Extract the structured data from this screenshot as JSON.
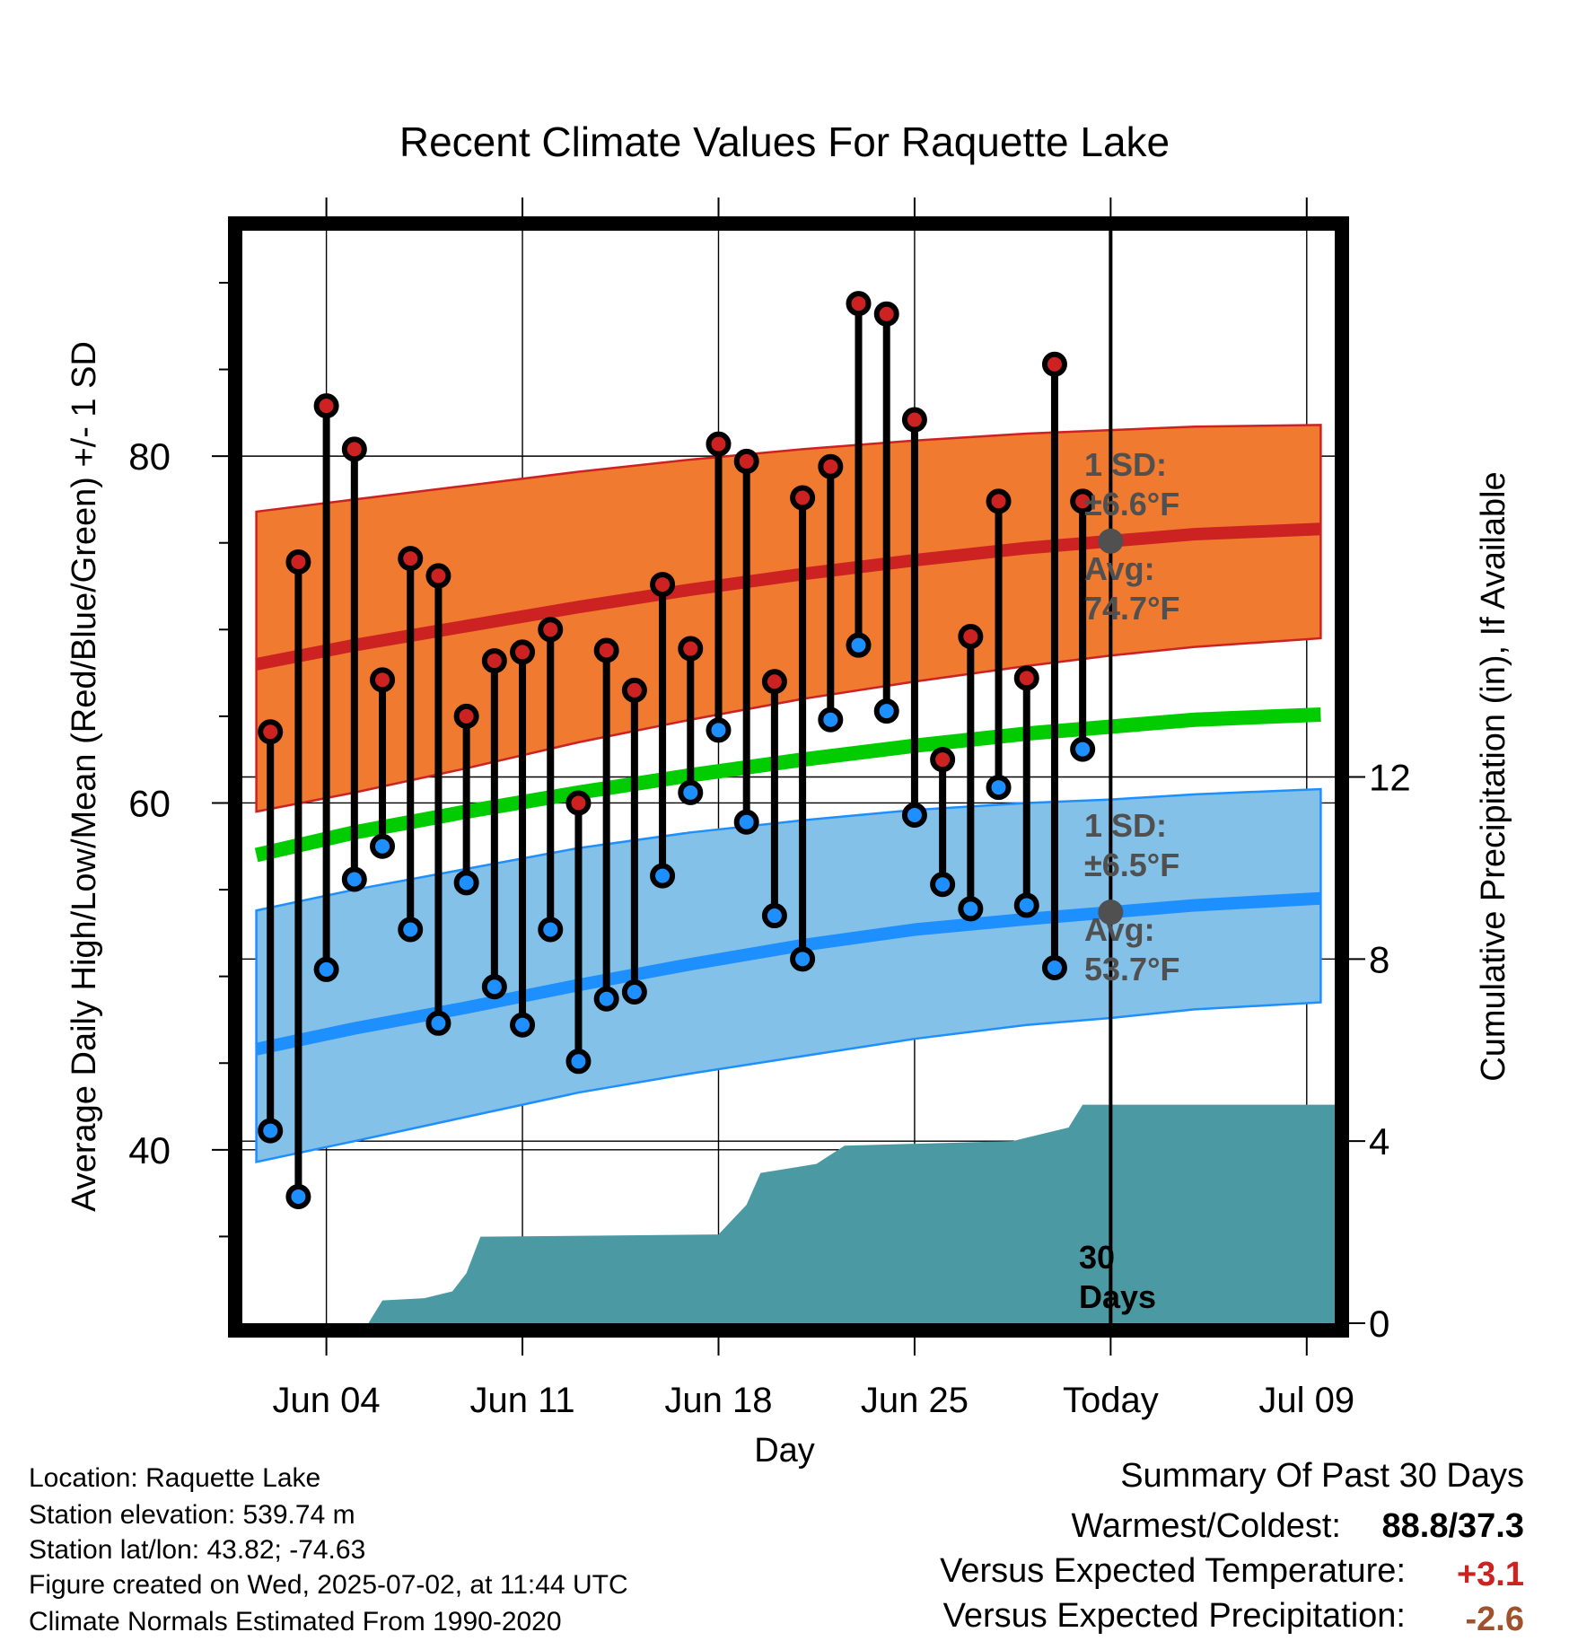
{
  "chart_data": {
    "type": "line",
    "title": "Recent Climate Values For Raquette Lake",
    "xlabel": "Day",
    "ylabel": "Average Daily High/Low/Mean (Red/Blue/Green) +/- 1 SD",
    "y2label": "Cumulative Precipitation (in), If Available",
    "ylim": [
      30,
      93
    ],
    "y2lim": [
      0,
      24
    ],
    "yticks": [
      40,
      60,
      80
    ],
    "y2ticks": [
      0,
      4,
      8,
      12
    ],
    "xrange": [
      0,
      39
    ],
    "xticks": [
      {
        "day": 3,
        "label": "Jun 04"
      },
      {
        "day": 10,
        "label": "Jun 11"
      },
      {
        "day": 17,
        "label": "Jun 18"
      },
      {
        "day": 24,
        "label": "Jun 25"
      },
      {
        "day": 31,
        "label": "Today"
      },
      {
        "day": 38,
        "label": "Jul 09"
      }
    ],
    "today_day": 31,
    "grid": true,
    "normals": {
      "days": [
        0.5,
        4,
        8,
        12,
        16,
        20,
        24,
        28,
        31,
        34,
        38.5
      ],
      "high_mean": [
        68.0,
        69.1,
        70.2,
        71.3,
        72.3,
        73.2,
        74.0,
        74.7,
        75.1,
        75.5,
        75.8
      ],
      "high_upper": [
        76.8,
        77.5,
        78.3,
        79.1,
        79.8,
        80.4,
        80.9,
        81.3,
        81.5,
        81.7,
        81.8
      ],
      "high_lower": [
        59.5,
        60.6,
        62.0,
        63.5,
        64.8,
        66.0,
        67.0,
        67.9,
        68.5,
        69.0,
        69.5
      ],
      "low_mean": [
        45.8,
        47.0,
        48.2,
        49.5,
        50.7,
        51.8,
        52.7,
        53.3,
        53.7,
        54.1,
        54.5
      ],
      "low_upper": [
        53.8,
        55.0,
        56.2,
        57.4,
        58.3,
        59.0,
        59.6,
        60.0,
        60.2,
        60.5,
        60.8
      ],
      "low_lower": [
        39.3,
        40.5,
        41.9,
        43.3,
        44.4,
        45.4,
        46.4,
        47.2,
        47.6,
        48.1,
        48.5
      ],
      "mean_mean": [
        57.0,
        58.3,
        59.5,
        60.6,
        61.6,
        62.5,
        63.3,
        64.0,
        64.4,
        64.8,
        65.1
      ]
    },
    "observed": {
      "days": [
        1,
        2,
        3,
        4,
        5,
        6,
        7,
        8,
        9,
        10,
        11,
        12,
        13,
        14,
        15,
        16,
        17,
        18,
        19,
        20,
        21,
        22,
        23,
        24,
        25,
        26,
        27,
        28,
        29,
        30
      ],
      "highs": [
        64.1,
        73.9,
        82.9,
        80.4,
        67.1,
        74.1,
        73.1,
        65.0,
        68.2,
        68.7,
        70.0,
        60.0,
        68.8,
        66.5,
        72.6,
        68.9,
        80.7,
        79.7,
        67.0,
        77.6,
        79.4,
        88.8,
        88.2,
        82.1,
        62.5,
        69.6,
        77.4,
        67.2,
        85.3,
        77.4
      ],
      "lows": [
        41.1,
        37.3,
        50.4,
        55.6,
        57.5,
        52.7,
        47.3,
        55.4,
        49.4,
        47.2,
        52.7,
        45.1,
        48.7,
        49.1,
        55.8,
        60.6,
        64.2,
        58.9,
        53.5,
        51.0,
        64.8,
        69.1,
        65.3,
        59.3,
        55.3,
        53.9,
        60.9,
        54.1,
        50.5,
        63.1
      ]
    },
    "precipitation": {
      "days": [
        0.5,
        4.5,
        5.0,
        6.5,
        7.5,
        8.0,
        8.5,
        17.0,
        18.0,
        18.5,
        20.5,
        21.5,
        27.5,
        29.5,
        30.0,
        31.0,
        39.0
      ],
      "cumulative": [
        0,
        0,
        0.5,
        0.55,
        0.7,
        1.1,
        1.9,
        1.95,
        2.6,
        3.3,
        3.5,
        3.9,
        4.0,
        4.3,
        4.8,
        4.8,
        4.8
      ]
    },
    "colors": {
      "high": "#cc2222",
      "high_band": "#f07a30",
      "low": "#1e8fff",
      "low_band": "#84c1e8",
      "mean": "#00cc00",
      "precip": "#4b9aa3",
      "today_marker": "#505050",
      "annotation": "#505050"
    }
  },
  "annotations": {
    "high_sd_label": "1 SD:",
    "high_sd_value": "±6.6°F",
    "high_avg_label": "Avg:",
    "high_avg_value": "74.7°F",
    "low_sd_label": "1 SD:",
    "low_sd_value": "±6.5°F",
    "low_avg_label": "Avg:",
    "low_avg_value": "53.7°F",
    "precip_days_line1": "30",
    "precip_days_line2": "Days"
  },
  "info": {
    "location": "Location: Raquette Lake",
    "elevation": "Station elevation: 539.74 m",
    "latlon": "Station lat/lon: 43.82; -74.63",
    "created": "Figure created on Wed, 2025-07-02, at 11:44 UTC",
    "normals": "Climate Normals Estimated From 1990-2020"
  },
  "summary": {
    "title": "Summary Of Past 30 Days",
    "warm_cold_label": "Warmest/Coldest:",
    "warm_cold_value": "88.8/37.3",
    "temp_label": "Versus Expected Temperature:",
    "temp_value": "+3.1",
    "temp_color": "#cc2222",
    "precip_label": "Versus Expected Precipitation:",
    "precip_value": "-2.6",
    "precip_color": "#a0522d"
  }
}
